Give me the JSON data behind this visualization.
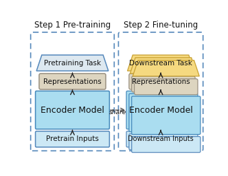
{
  "title_left": "Step 1 Pre-training",
  "title_right": "Step 2 Fine-tuning",
  "share_label": "share",
  "outer_border": "#5588bb",
  "encoder_color": "#aaddf0",
  "encoder_border": "#4488bb",
  "representations_color": "#ddd5c0",
  "representations_border": "#999080",
  "pretrain_task_color": "#dde8f0",
  "pretrain_task_border": "#5588bb",
  "downstream_task_color": "#f5d980",
  "downstream_task_border": "#c8a030",
  "inputs_color": "#cce8f5",
  "inputs_border": "#5588bb",
  "arrow_color": "#222222",
  "dashed_arrow_color": "#555555",
  "text_color": "#111111",
  "bg_color": "#ffffff",
  "title_fontsize": 8.5,
  "label_fontsize": 7.5,
  "encoder_fontsize": 9,
  "share_fontsize": 6.5
}
